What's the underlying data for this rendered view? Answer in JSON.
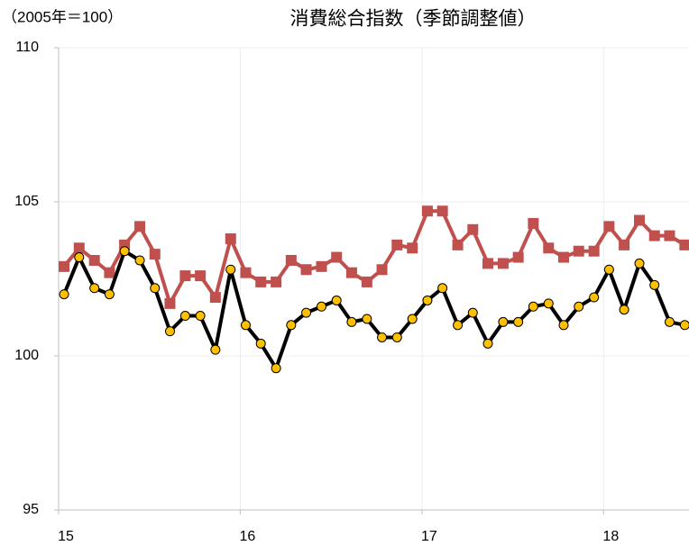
{
  "chart_data": {
    "type": "line",
    "title": "消費総合指数（季節調整値）",
    "unit_label": "（2005年＝100）",
    "x": [
      15.03,
      15.113,
      15.197,
      15.28,
      15.363,
      15.447,
      15.53,
      15.613,
      15.697,
      15.78,
      15.863,
      15.947,
      16.03,
      16.113,
      16.197,
      16.28,
      16.363,
      16.447,
      16.53,
      16.613,
      16.697,
      16.78,
      16.863,
      16.947,
      17.03,
      17.113,
      17.197,
      17.28,
      17.363,
      17.447,
      17.53,
      17.613,
      17.697,
      17.78,
      17.863,
      17.947,
      18.03,
      18.113,
      18.197,
      18.28,
      18.363,
      18.447
    ],
    "series": [
      {
        "color": "#c0504d",
        "marker": "square",
        "marker_color": "#c0504d",
        "values": [
          102.9,
          103.5,
          103.1,
          102.7,
          103.6,
          104.2,
          103.3,
          101.7,
          102.6,
          102.6,
          101.9,
          103.8,
          102.7,
          102.4,
          102.4,
          103.1,
          102.8,
          102.9,
          103.2,
          102.7,
          102.4,
          102.8,
          103.6,
          103.5,
          104.7,
          104.7,
          103.6,
          104.1,
          103.0,
          103.0,
          103.2,
          104.3,
          103.5,
          103.2,
          103.4,
          103.4,
          104.2,
          103.6,
          104.4,
          103.9,
          103.9,
          103.6
        ]
      },
      {
        "color": "#000000",
        "marker": "circle",
        "marker_color": "#ffc000",
        "values": [
          102.0,
          103.2,
          102.2,
          102.0,
          103.4,
          103.1,
          102.2,
          100.8,
          101.3,
          101.3,
          100.2,
          102.8,
          101.0,
          100.4,
          99.6,
          101.0,
          101.4,
          101.6,
          101.8,
          101.1,
          101.2,
          100.6,
          100.6,
          101.2,
          101.8,
          102.2,
          101.0,
          101.4,
          100.4,
          101.1,
          101.1,
          101.6,
          101.7,
          101.0,
          101.6,
          101.9,
          102.8,
          101.5,
          103.0,
          102.3,
          101.1,
          101.0
        ]
      }
    ],
    "xlim": [
      15,
      18.47
    ],
    "xticks": [
      15,
      16,
      17,
      18
    ],
    "ylim": [
      95,
      110
    ],
    "yticks": [
      95,
      100,
      105,
      110
    ],
    "grid": true
  }
}
